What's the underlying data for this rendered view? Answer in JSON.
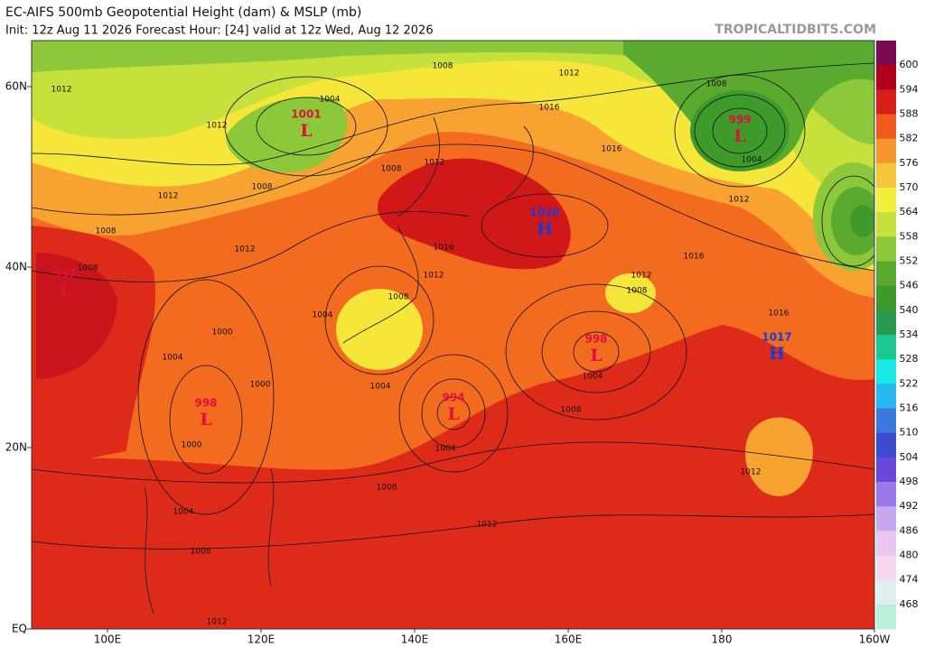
{
  "header": {
    "title": "EC-AIFS 500mb Geopotential Height (dam) & MSLP (mb)",
    "subtitle": "Init: 12z Aug 11 2026   Forecast Hour: [24]   valid at 12z Wed, Aug 12 2026",
    "watermark": "TROPICALTIDBITS.COM"
  },
  "axes": {
    "lat_labels": [
      "60N",
      "40N",
      "20N",
      "EQ"
    ],
    "lon_labels": [
      "100E",
      "120E",
      "140E",
      "160E",
      "180",
      "160W"
    ]
  },
  "colorbar": {
    "labels": [
      "600",
      "594",
      "588",
      "582",
      "576",
      "570",
      "564",
      "558",
      "552",
      "546",
      "540",
      "534",
      "528",
      "522",
      "516",
      "510",
      "504",
      "498",
      "492",
      "486",
      "480",
      "474",
      "468"
    ]
  },
  "pressure_centers": [
    {
      "value": "1001",
      "letter": "L"
    },
    {
      "value": "997",
      "letter": "L"
    },
    {
      "value": "1020",
      "letter": "H"
    },
    {
      "value": "999",
      "letter": "L"
    },
    {
      "value": "998",
      "letter": "L"
    },
    {
      "value": "994",
      "letter": "L"
    },
    {
      "value": "998",
      "letter": "L"
    },
    {
      "value": "1017",
      "letter": "H"
    }
  ],
  "isobar_labels": [
    "1008",
    "1012",
    "1012",
    "1004",
    "1012",
    "1016",
    "1008",
    "1016",
    "1004",
    "1008",
    "1012",
    "1008",
    "1012",
    "1012",
    "1016",
    "1008",
    "1012",
    "1016",
    "1008",
    "1012",
    "1012",
    "1008",
    "1008",
    "1004",
    "1016",
    "1000",
    "1004",
    "1004",
    "1004",
    "1000",
    "1008",
    "1004",
    "1000",
    "1012",
    "1008",
    "1004",
    "1012",
    "1008",
    "1012"
  ]
}
